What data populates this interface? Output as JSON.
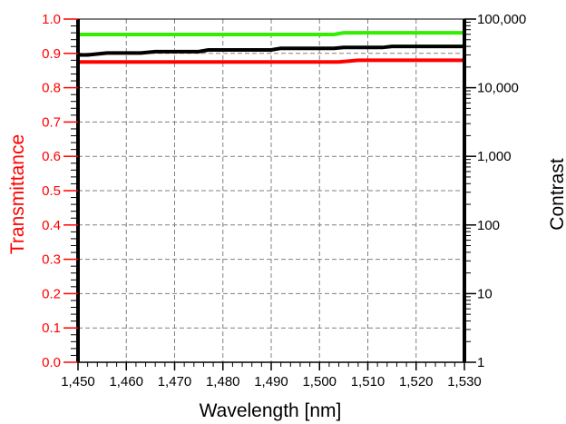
{
  "chart_data": {
    "type": "line",
    "xlabel": "Wavelength [nm]",
    "ylabel_left": "Transmittance",
    "ylabel_right": "Contrast",
    "colors": {
      "left_axis": "#ff0000",
      "right_axis": "#000000",
      "grid": "#808080"
    },
    "grid": true,
    "xlim": [
      1450,
      1530
    ],
    "x_ticks": [
      1450,
      1460,
      1470,
      1480,
      1490,
      1500,
      1510,
      1520,
      1530
    ],
    "x_tick_labels": [
      "1,450",
      "1,460",
      "1,470",
      "1,480",
      "1,490",
      "1,500",
      "1,510",
      "1,520",
      "1,530"
    ],
    "ylim_left": [
      0,
      1
    ],
    "y_ticks_left": [
      0,
      0.1,
      0.2,
      0.3,
      0.4,
      0.5,
      0.6,
      0.7,
      0.8,
      0.9,
      1.0
    ],
    "y_tick_labels_left": [
      "0.0",
      "0.1",
      "0.2",
      "0.3",
      "0.4",
      "0.5",
      "0.6",
      "0.7",
      "0.8",
      "0.9",
      "1.0"
    ],
    "ylim_right": [
      1,
      100000
    ],
    "y_scale_right": "log",
    "y_ticks_right": [
      1,
      10,
      100,
      1000,
      10000,
      100000
    ],
    "y_tick_labels_right": [
      "1",
      "10",
      "100",
      "1,000",
      "10,000",
      "100,000"
    ],
    "series": [
      {
        "axis": "left",
        "color": "#33ee00",
        "x": [
          1450,
          1503,
          1505,
          1530
        ],
        "y": [
          0.955,
          0.955,
          0.96,
          0.96
        ]
      },
      {
        "axis": "left",
        "color": "#ff0000",
        "x": [
          1450,
          1504,
          1508,
          1530
        ],
        "y": [
          0.875,
          0.875,
          0.88,
          0.88
        ]
      },
      {
        "axis": "right",
        "color": "#000000",
        "x": [
          1450,
          1452,
          1456,
          1463,
          1466,
          1475,
          1477,
          1490,
          1492,
          1503,
          1505,
          1513,
          1515,
          1530
        ],
        "y": [
          30000,
          30000,
          32000,
          32000,
          33500,
          33500,
          35500,
          35500,
          37500,
          37500,
          38500,
          38500,
          40000,
          40000
        ]
      }
    ]
  }
}
